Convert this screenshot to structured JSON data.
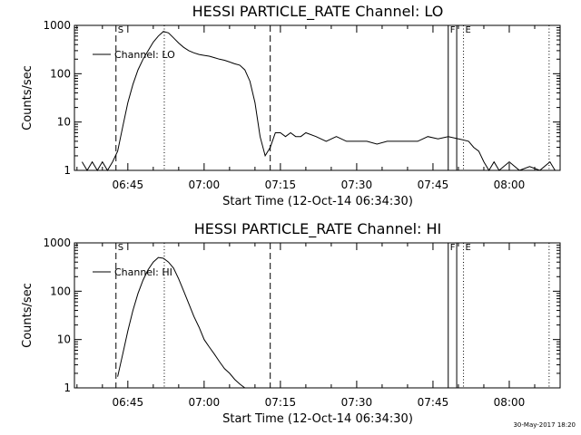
{
  "timestamp": "30-May-2017 18:20",
  "chart_data": [
    {
      "type": "line",
      "title": "HESSI PARTICLE_RATE Channel: LO",
      "xlabel": "Start Time (12-Oct-14 06:34:30)",
      "ylabel": "Counts/sec",
      "yscale": "log",
      "xlim": [
        "06:34:30",
        "08:10:00"
      ],
      "ylim": [
        1,
        1000
      ],
      "xticks": [
        "06:45",
        "07:00",
        "07:15",
        "07:30",
        "07:45",
        "08:00"
      ],
      "yticks": [
        "1",
        "10",
        "100",
        "1000"
      ],
      "legend": {
        "position": "top-left"
      },
      "markers": [
        {
          "label": "S",
          "time": "06:42:40",
          "style": "dashed"
        },
        {
          "label": "",
          "time": "06:52:10",
          "style": "dotted"
        },
        {
          "label": "",
          "time": "07:13:00",
          "style": "dashed"
        },
        {
          "label": "F",
          "time": "07:48:00",
          "style": "solid"
        },
        {
          "label": "",
          "time": "07:49:40",
          "style": "solid"
        },
        {
          "label": "E",
          "time": "07:51:00",
          "style": "dotted"
        },
        {
          "label": "",
          "time": "08:07:50",
          "style": "dotted"
        }
      ],
      "series": [
        {
          "name": "Channel: LO",
          "x": [
            "06:36",
            "06:37",
            "06:38",
            "06:39",
            "06:40",
            "06:41",
            "06:42",
            "06:43",
            "06:44",
            "06:45",
            "06:46",
            "06:47",
            "06:48",
            "06:49",
            "06:50",
            "06:51",
            "06:52",
            "06:53",
            "06:54",
            "06:55",
            "06:56",
            "06:57",
            "06:58",
            "06:59",
            "07:00",
            "07:01",
            "07:02",
            "07:03",
            "07:04",
            "07:05",
            "07:06",
            "07:07",
            "07:08",
            "07:09",
            "07:10",
            "07:11",
            "07:12",
            "07:13",
            "07:14",
            "07:15",
            "07:16",
            "07:17",
            "07:18",
            "07:19",
            "07:20",
            "07:22",
            "07:24",
            "07:26",
            "07:28",
            "07:30",
            "07:32",
            "07:34",
            "07:36",
            "07:38",
            "07:40",
            "07:42",
            "07:44",
            "07:46",
            "07:48",
            "07:50",
            "07:52",
            "07:53",
            "07:54",
            "07:55",
            "07:56",
            "07:57",
            "07:58",
            "08:00",
            "08:02",
            "08:04",
            "08:06",
            "08:08",
            "08:09"
          ],
          "y": [
            1.5,
            1,
            1.5,
            1,
            1.5,
            1,
            1.5,
            2.5,
            8,
            25,
            60,
            120,
            200,
            300,
            450,
            600,
            750,
            700,
            550,
            430,
            350,
            300,
            270,
            250,
            240,
            230,
            215,
            200,
            190,
            175,
            160,
            150,
            120,
            70,
            25,
            5,
            2,
            3,
            6,
            6,
            5,
            6,
            5,
            5,
            6,
            5,
            4,
            5,
            4,
            4,
            4,
            3.5,
            4,
            4,
            4,
            4,
            5,
            4.5,
            5,
            4.5,
            4,
            3,
            2.5,
            1.5,
            1,
            1.5,
            1,
            1.5,
            1,
            1.2,
            1,
            1.5,
            1
          ]
        }
      ]
    },
    {
      "type": "line",
      "title": "HESSI PARTICLE_RATE Channel: HI",
      "xlabel": "Start Time (12-Oct-14 06:34:30)",
      "ylabel": "Counts/sec",
      "yscale": "log",
      "xlim": [
        "06:34:30",
        "08:10:00"
      ],
      "ylim": [
        1,
        1000
      ],
      "xticks": [
        "06:45",
        "07:00",
        "07:15",
        "07:30",
        "07:45",
        "08:00"
      ],
      "yticks": [
        "1",
        "10",
        "100",
        "1000"
      ],
      "legend": {
        "position": "top-left"
      },
      "markers": [
        {
          "label": "S",
          "time": "06:42:40",
          "style": "dashed"
        },
        {
          "label": "",
          "time": "06:52:10",
          "style": "dotted"
        },
        {
          "label": "",
          "time": "07:13:00",
          "style": "dashed"
        },
        {
          "label": "F",
          "time": "07:48:00",
          "style": "solid"
        },
        {
          "label": "",
          "time": "07:49:40",
          "style": "solid"
        },
        {
          "label": "E",
          "time": "07:51:00",
          "style": "dotted"
        },
        {
          "label": "",
          "time": "08:07:50",
          "style": "dotted"
        }
      ],
      "series": [
        {
          "name": "Channel: HI",
          "x": [
            "06:43",
            "06:44",
            "06:45",
            "06:46",
            "06:47",
            "06:48",
            "06:49",
            "06:50",
            "06:51",
            "06:52",
            "06:53",
            "06:54",
            "06:55",
            "06:56",
            "06:57",
            "06:58",
            "06:59",
            "07:00",
            "07:01",
            "07:02",
            "07:03",
            "07:04",
            "07:05",
            "07:06",
            "07:07",
            "07:08"
          ],
          "y": [
            1.7,
            5,
            15,
            40,
            90,
            170,
            280,
            400,
            500,
            480,
            400,
            300,
            180,
            100,
            55,
            30,
            18,
            10,
            7,
            5,
            3.5,
            2.5,
            2,
            1.5,
            1.2,
            1
          ]
        }
      ]
    }
  ]
}
